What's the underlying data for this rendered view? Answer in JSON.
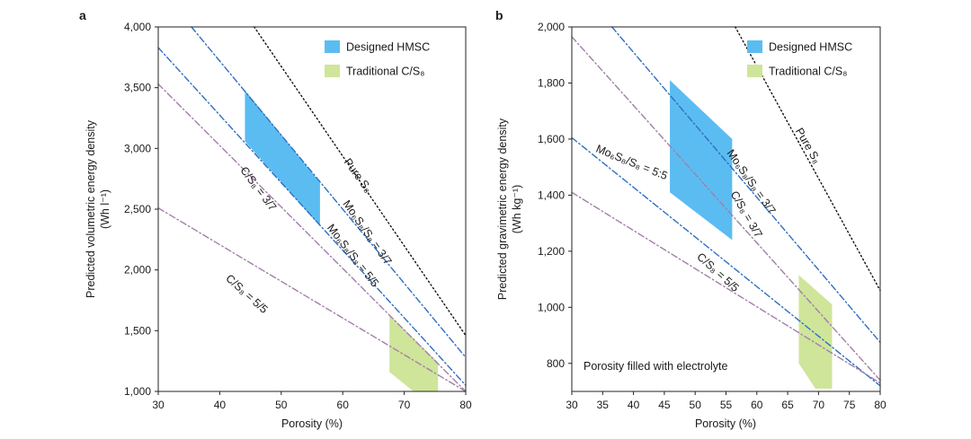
{
  "chart_data": [
    {
      "type": "line",
      "panel": "a",
      "xlabel": "Porosity (%)",
      "ylabel_line1": "Predicted volumetric energy density",
      "ylabel_line2": "(Wh l⁻¹)",
      "xlim": [
        30,
        80
      ],
      "ylim": [
        1000,
        4000
      ],
      "xticks": [
        30,
        40,
        50,
        60,
        70,
        80
      ],
      "xtick_labels": [
        "30",
        "40",
        "50",
        "60",
        "70",
        "80"
      ],
      "yticks": [
        1000,
        1500,
        2000,
        2500,
        3000,
        3500,
        4000
      ],
      "ytick_labels": [
        "1,000",
        "1,500",
        "2,000",
        "2,500",
        "3,000",
        "3,500",
        "4,000"
      ],
      "legend": [
        {
          "label": "Designed HMSC",
          "color": "#5bbcf2"
        },
        {
          "label": "Traditional C/S₈",
          "color": "#cfe59a"
        }
      ],
      "series": [
        {
          "name": "Pure S₈",
          "label": "Pure S₈",
          "style": "dotted",
          "color": "#111111",
          "x": [
            45.6,
            80
          ],
          "y": [
            4000,
            1460
          ],
          "label_x": 62,
          "label_y": 2760,
          "label_rot": 54
        },
        {
          "name": "Mo₆S₈/S₈ = 3/7",
          "label": "Mo₆S₈/S₈ = 3/7",
          "style": "dashdot",
          "color": "#2f6fc0",
          "x": [
            35.4,
            80
          ],
          "y": [
            4000,
            1280
          ],
          "label_x": 63.5,
          "label_y": 2290,
          "label_rot": 55
        },
        {
          "name": "Mo₆S₈/S₈ = 5/5",
          "label": "Mo₆S₈/S₈ = 5/5",
          "style": "dashdot",
          "color": "#2f6fc0",
          "x": [
            30,
            80
          ],
          "y": [
            3830,
            1050
          ],
          "label_x": 61.2,
          "label_y": 2100,
          "label_rot": 52
        },
        {
          "name": "C/S₈ = 3/7",
          "label": "C/S₈ = 3/7",
          "style": "dashdot",
          "color": "#a27fa8",
          "x": [
            30,
            80
          ],
          "y": [
            3530,
            1000
          ],
          "label_x": 45.8,
          "label_y": 2650,
          "label_rot": 53
        },
        {
          "name": "C/S₈ = 5/5",
          "label": "C/S₈ = 5/5",
          "style": "dashdot",
          "color": "#a27fa8",
          "x": [
            30,
            80
          ],
          "y": [
            2510,
            1000
          ],
          "label_x": 44,
          "label_y": 1780,
          "label_rot": 42
        }
      ],
      "regions": [
        {
          "name": "Designed HMSC",
          "color": "#5bbcf2",
          "x": [
            44.1,
            44.1,
            56.3,
            56.3
          ],
          "y": [
            3480,
            3060,
            2360,
            2720
          ]
        },
        {
          "name": "Traditional C/S₈",
          "color": "#cfe59a",
          "x": [
            67.6,
            67.6,
            71.5,
            75.5,
            75.5
          ],
          "y": [
            1630,
            1160,
            1000,
            1000,
            1240
          ]
        }
      ]
    },
    {
      "type": "line",
      "panel": "b",
      "xlabel": "Porosity (%)",
      "ylabel_line1": "Predicted gravimetric energy density",
      "ylabel_line2": "(Wh kg⁻¹)",
      "xlim": [
        30,
        80
      ],
      "ylim": [
        700,
        2000
      ],
      "xticks": [
        30,
        35,
        40,
        45,
        50,
        55,
        60,
        65,
        70,
        75,
        80
      ],
      "xtick_labels": [
        "30",
        "35",
        "40",
        "45",
        "50",
        "55",
        "60",
        "65",
        "70",
        "75",
        "80"
      ],
      "yticks": [
        800,
        1000,
        1200,
        1400,
        1600,
        1800,
        2000
      ],
      "ytick_labels": [
        "800",
        "1,000",
        "1,200",
        "1,400",
        "1,600",
        "1,800",
        "2,000"
      ],
      "legend": [
        {
          "label": "Designed HMSC",
          "color": "#5bbcf2"
        },
        {
          "label": "Traditional C/S₈",
          "color": "#cfe59a"
        }
      ],
      "annotation": "Porosity filled with electrolyte",
      "series": [
        {
          "name": "Pure S₈",
          "label": "Pure S₈",
          "style": "dotted",
          "color": "#111111",
          "x": [
            56.5,
            80
          ],
          "y": [
            2000,
            1060
          ],
          "label_x": 67.8,
          "label_y": 1570,
          "label_rot": 60
        },
        {
          "name": "Mo₆S₈/S₈ = 3/7",
          "label": "Mo₆S₈/S₈ = 3/7",
          "style": "dashdot",
          "color": "#2f6fc0",
          "x": [
            36.5,
            80
          ],
          "y": [
            2000,
            875
          ],
          "label_x": 58.6,
          "label_y": 1440,
          "label_rot": 55
        },
        {
          "name": "Mo₆S₈/S₈ = 5:5",
          "label": "Mo₆S₈/S₈ = 5:5",
          "style": "dashdot",
          "color": "#2f6fc0",
          "x": [
            30,
            80
          ],
          "y": [
            1605,
            720
          ],
          "label_x": 39.5,
          "label_y": 1505,
          "label_rot": 22
        },
        {
          "name": "C/S₈ = 3/7",
          "label": "C/S₈ = 3/7",
          "style": "dashdot",
          "color": "#a27fa8",
          "x": [
            30,
            80
          ],
          "y": [
            1965,
            740
          ],
          "label_x": 57.8,
          "label_y": 1325,
          "label_rot": 60
        },
        {
          "name": "C/S₈ = 5/5",
          "label": "C/S₈ = 5/5",
          "style": "dashdot",
          "color": "#a27fa8",
          "x": [
            30,
            80
          ],
          "y": [
            1410,
            730
          ],
          "label_x": 53.3,
          "label_y": 1115,
          "label_rot": 42
        }
      ],
      "regions": [
        {
          "name": "Designed HMSC",
          "color": "#5bbcf2",
          "x": [
            45.9,
            45.9,
            56.0,
            56.0
          ],
          "y": [
            1810,
            1410,
            1240,
            1600
          ]
        },
        {
          "name": "Traditional C/S₈",
          "color": "#cfe59a",
          "x": [
            66.8,
            66.8,
            69.5,
            72.2,
            72.2
          ],
          "y": [
            1115,
            800,
            710,
            710,
            1010
          ]
        }
      ]
    }
  ]
}
